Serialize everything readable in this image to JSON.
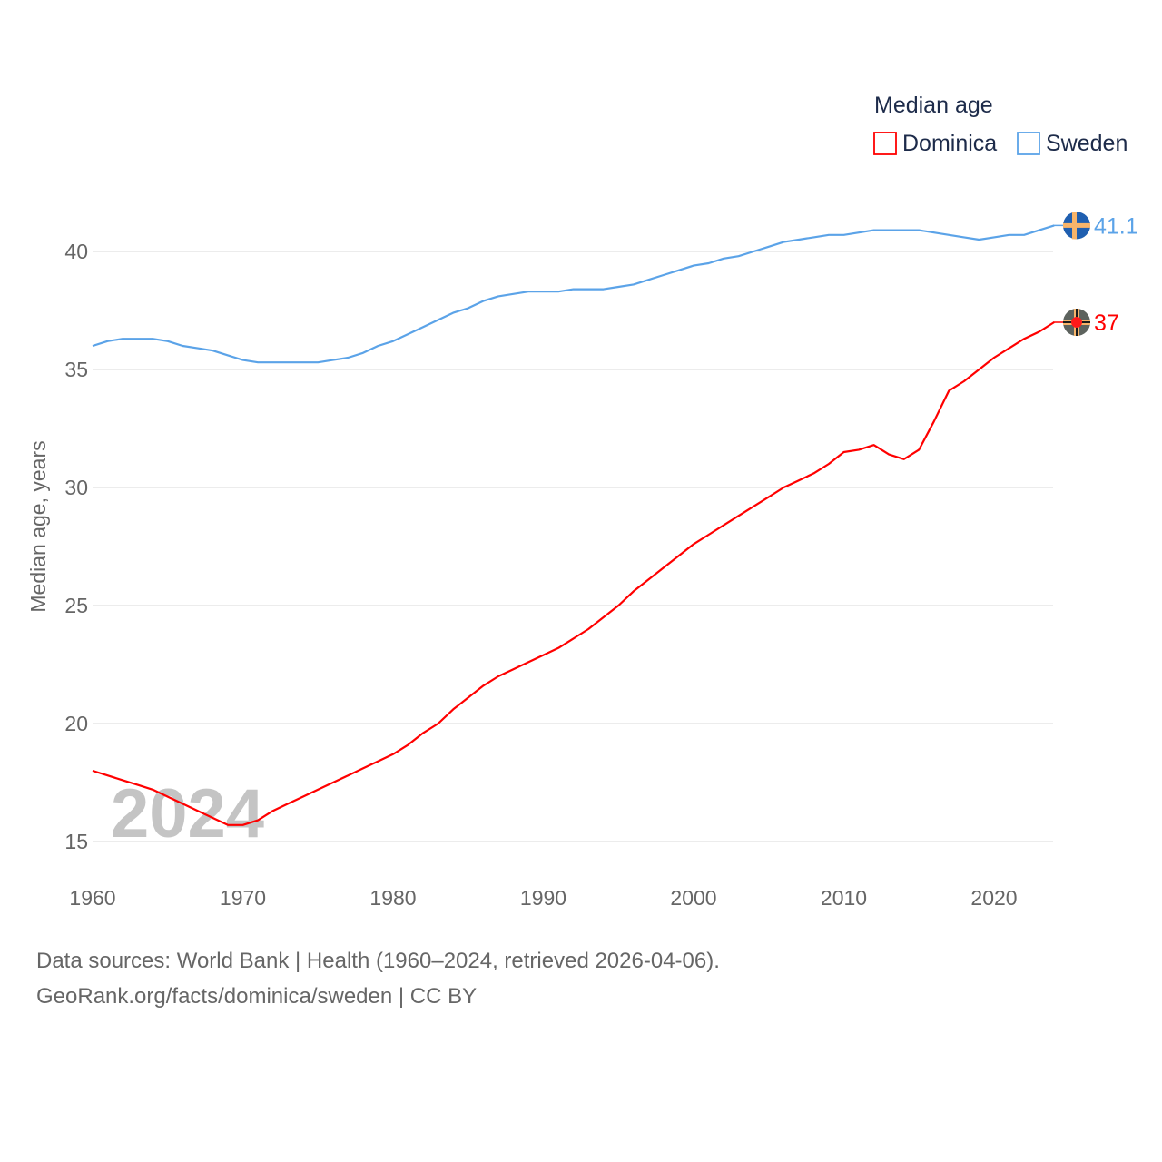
{
  "chart_data": {
    "type": "line",
    "title": "Median age",
    "xlabel": "",
    "ylabel": "Median age, years",
    "xlim": [
      1960,
      2024
    ],
    "ylim": [
      14,
      42
    ],
    "yticks": [
      15,
      20,
      25,
      30,
      35,
      40
    ],
    "xticks": [
      1960,
      1970,
      1980,
      1990,
      2000,
      2010,
      2020
    ],
    "grid": true,
    "legend_position": "top-right",
    "year_watermark": "2024",
    "x": [
      1960,
      1961,
      1962,
      1963,
      1964,
      1965,
      1966,
      1967,
      1968,
      1969,
      1970,
      1971,
      1972,
      1973,
      1974,
      1975,
      1976,
      1977,
      1978,
      1979,
      1980,
      1981,
      1982,
      1983,
      1984,
      1985,
      1986,
      1987,
      1988,
      1989,
      1990,
      1991,
      1992,
      1993,
      1994,
      1995,
      1996,
      1997,
      1998,
      1999,
      2000,
      2001,
      2002,
      2003,
      2004,
      2005,
      2006,
      2007,
      2008,
      2009,
      2010,
      2011,
      2012,
      2013,
      2014,
      2015,
      2016,
      2017,
      2018,
      2019,
      2020,
      2021,
      2022,
      2023,
      2024
    ],
    "series": [
      {
        "name": "Dominica",
        "color": "#ff0000",
        "end_label": "37",
        "values": [
          18.0,
          17.8,
          17.6,
          17.4,
          17.2,
          16.9,
          16.6,
          16.3,
          16.0,
          15.7,
          15.7,
          15.9,
          16.3,
          16.6,
          16.9,
          17.2,
          17.5,
          17.8,
          18.1,
          18.4,
          18.7,
          19.1,
          19.6,
          20.0,
          20.6,
          21.1,
          21.6,
          22.0,
          22.3,
          22.6,
          22.9,
          23.2,
          23.6,
          24.0,
          24.5,
          25.0,
          25.6,
          26.1,
          26.6,
          27.1,
          27.6,
          28.0,
          28.4,
          28.8,
          29.2,
          29.6,
          30.0,
          30.3,
          30.6,
          31.0,
          31.5,
          31.6,
          31.8,
          31.4,
          31.2,
          31.6,
          32.8,
          34.1,
          34.5,
          35.0,
          35.5,
          35.9,
          36.3,
          36.6,
          37.0
        ]
      },
      {
        "name": "Sweden",
        "color": "#5ba3e8",
        "end_label": "41.1",
        "values": [
          36.0,
          36.2,
          36.3,
          36.3,
          36.3,
          36.2,
          36.0,
          35.9,
          35.8,
          35.6,
          35.4,
          35.3,
          35.3,
          35.3,
          35.3,
          35.3,
          35.4,
          35.5,
          35.7,
          36.0,
          36.2,
          36.5,
          36.8,
          37.1,
          37.4,
          37.6,
          37.9,
          38.1,
          38.2,
          38.3,
          38.3,
          38.3,
          38.4,
          38.4,
          38.4,
          38.5,
          38.6,
          38.8,
          39.0,
          39.2,
          39.4,
          39.5,
          39.7,
          39.8,
          40.0,
          40.2,
          40.4,
          40.5,
          40.6,
          40.7,
          40.7,
          40.8,
          40.9,
          40.9,
          40.9,
          40.9,
          40.8,
          40.7,
          40.6,
          40.5,
          40.6,
          40.7,
          40.7,
          40.9,
          41.1
        ]
      }
    ]
  },
  "footer": {
    "line1": "Data sources: World Bank | Health (1960–2024, retrieved 2026-04-06).",
    "line2": "GeoRank.org/facts/dominica/sweden | CC BY"
  }
}
